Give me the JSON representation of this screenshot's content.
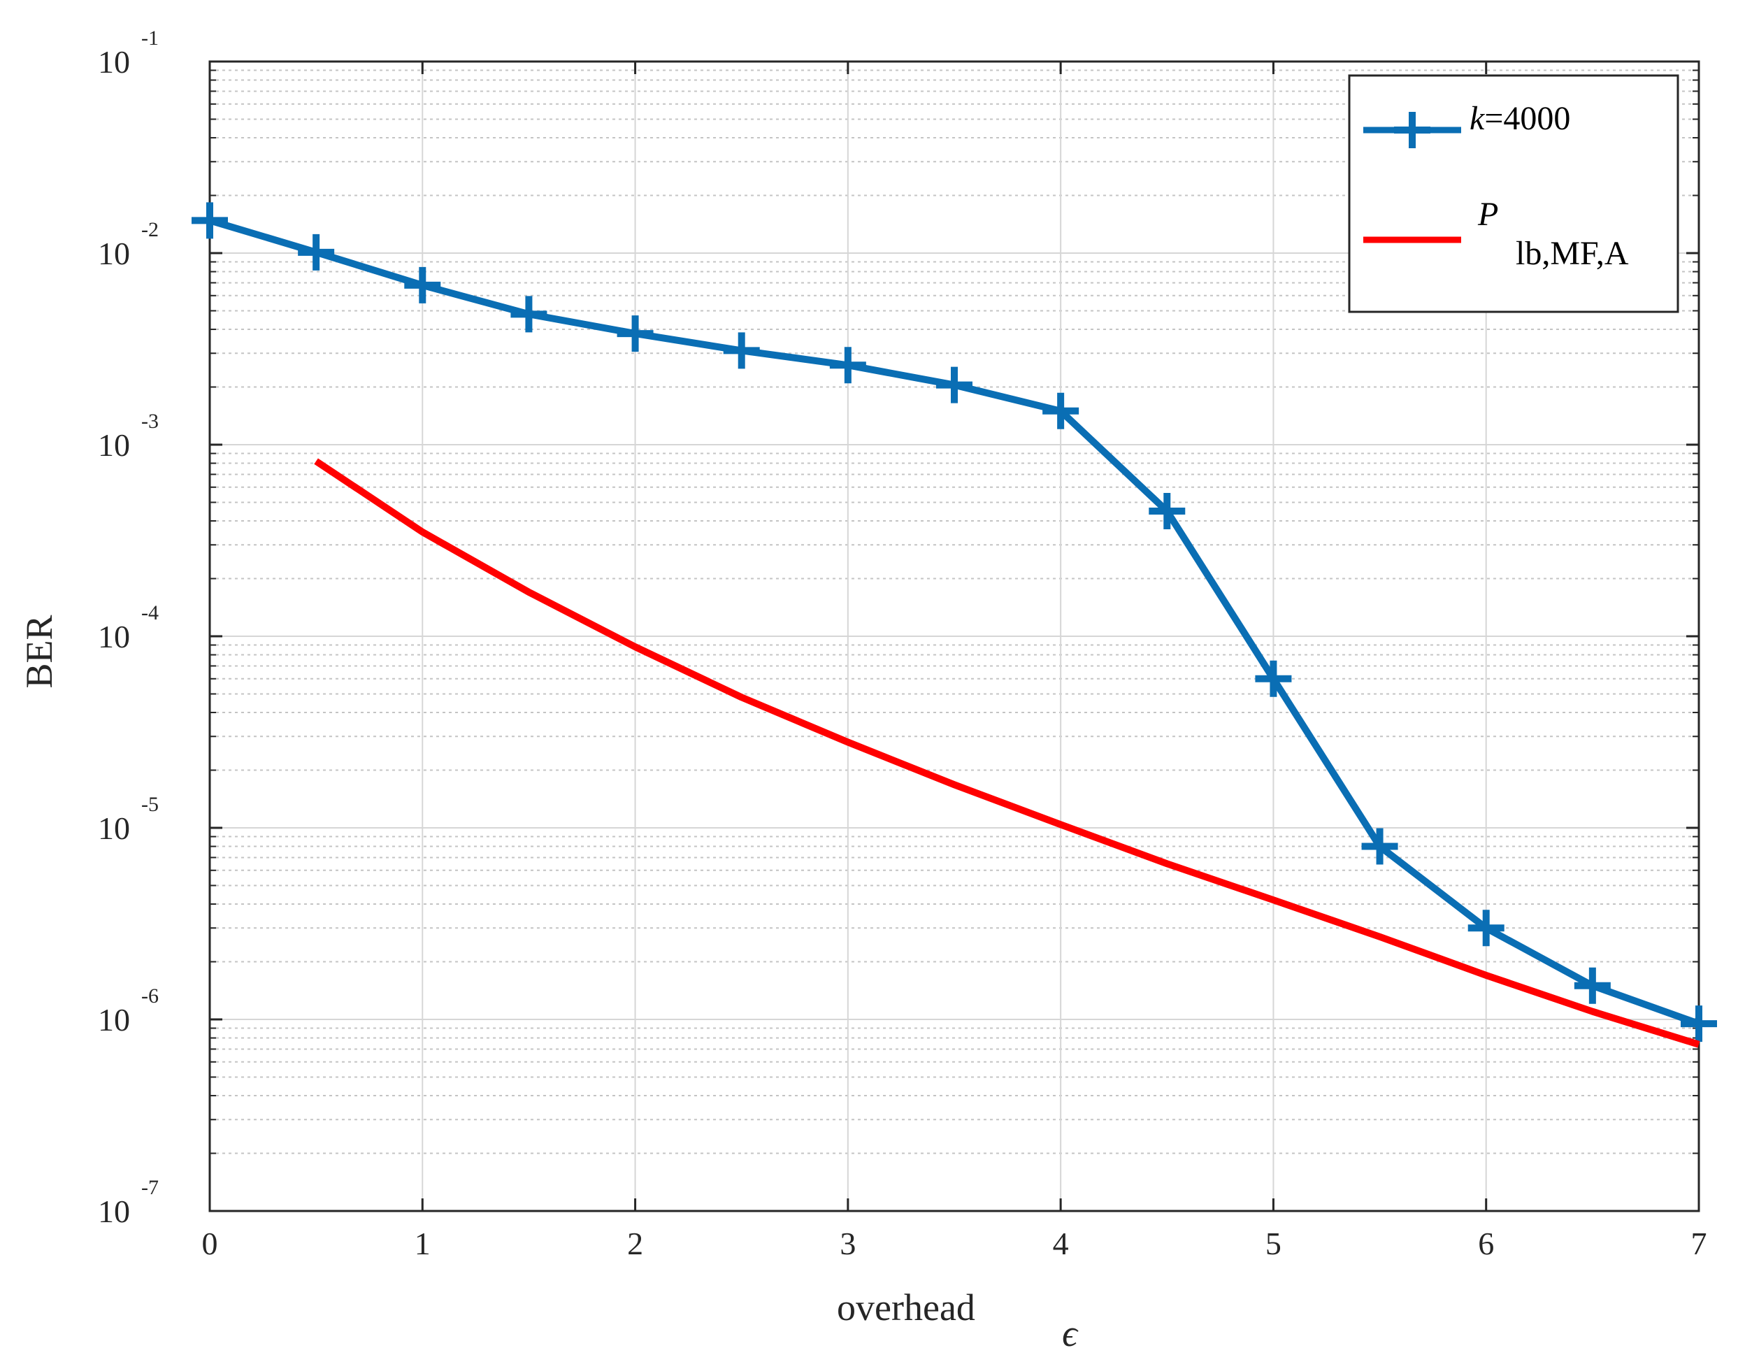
{
  "chart_data": {
    "type": "line",
    "xlabel": "overhead",
    "xlabel_symbol": "ϵ",
    "ylabel": "BER",
    "xlim": [
      0,
      7
    ],
    "ylim": [
      1e-07,
      0.1
    ],
    "yscale": "log",
    "grid": true,
    "minor_grid": true,
    "legend_position": "top-right",
    "x_ticks": [
      "0",
      "1",
      "2",
      "3",
      "4",
      "5",
      "6",
      "7"
    ],
    "y_ticks": [
      {
        "base": "10",
        "exp": "-7"
      },
      {
        "base": "10",
        "exp": "-6"
      },
      {
        "base": "10",
        "exp": "-5"
      },
      {
        "base": "10",
        "exp": "-4"
      },
      {
        "base": "10",
        "exp": "-3"
      },
      {
        "base": "10",
        "exp": "-2"
      },
      {
        "base": "10",
        "exp": "-1"
      }
    ],
    "series": [
      {
        "name_italic": "k",
        "name_rest": "=4000",
        "color": "#0a6eb4",
        "marker": "plus",
        "x": [
          0,
          0.5,
          1,
          1.5,
          2,
          2.5,
          3,
          3.5,
          4,
          4.5,
          5,
          5.5,
          6,
          6.5,
          7
        ],
        "y": [
          0.0148,
          0.0101,
          0.0068,
          0.0048,
          0.0038,
          0.0031,
          0.0026,
          0.00205,
          0.0015,
          0.00045,
          6e-05,
          8e-06,
          3e-06,
          1.5e-06,
          9.5e-07
        ]
      },
      {
        "name_italic": "P",
        "name_sub": "lb,MF,A",
        "color": "#ff0000",
        "marker": "none",
        "x": [
          0.5,
          1,
          1.5,
          2,
          2.5,
          3,
          3.5,
          4,
          4.5,
          5,
          5.5,
          6,
          6.5,
          7
        ],
        "y": [
          0.00082,
          0.00035,
          0.00017,
          8.8e-05,
          4.8e-05,
          2.8e-05,
          1.68e-05,
          1.04e-05,
          6.5e-06,
          4.2e-06,
          2.7e-06,
          1.7e-06,
          1.1e-06,
          7.4e-07
        ]
      }
    ]
  }
}
